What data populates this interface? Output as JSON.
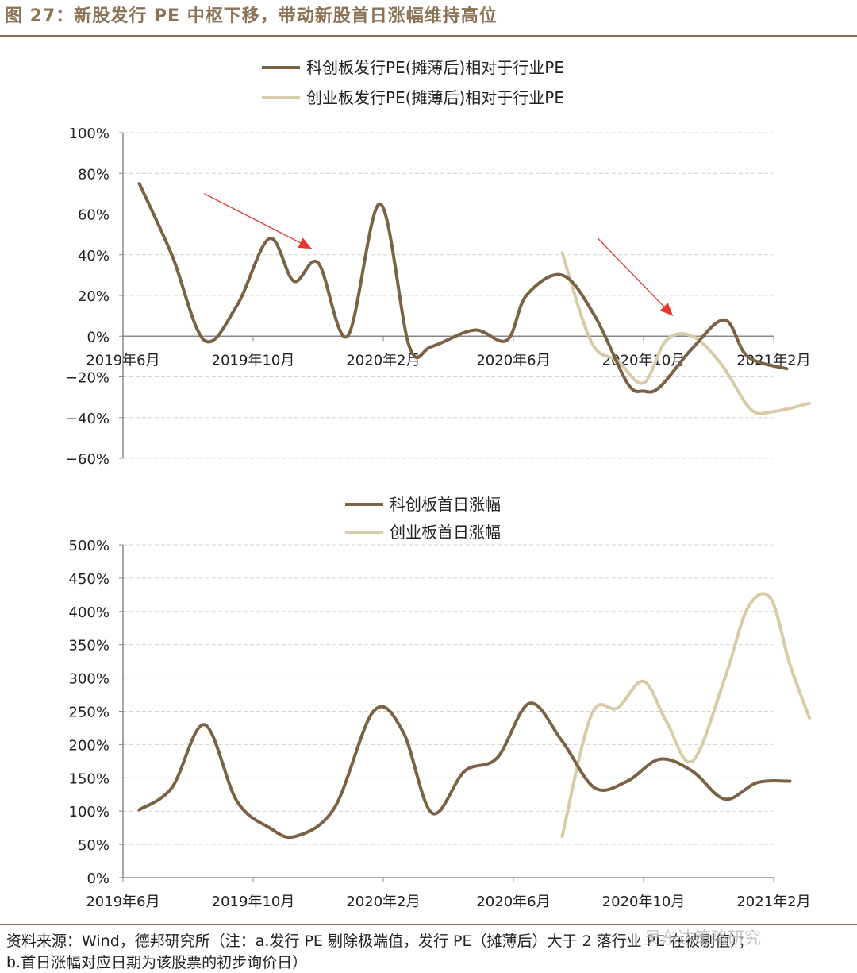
{
  "title": "图 27：新股发行 PE 中枢下移，带动新股首日涨幅维持高位",
  "colors": {
    "brand": "#8c7355",
    "kechuang": "#7c6245",
    "chuangye": "#d7cba8",
    "arrow": "#e8352d"
  },
  "footnote": {
    "line1": "资料来源：Wind，德邦研究所（注：a.发行 PE 剔除极端值，发行 PE（摊薄后）大于 2 落行业 PE 在被剔值）；",
    "line2": "b.首日涨幅对应日期为该股票的初步询价日）"
  },
  "watermark": "吴东达策略研究",
  "chart_data": [
    {
      "type": "line",
      "ylim": [
        -60,
        100
      ],
      "yticks": [
        -60,
        -40,
        -20,
        0,
        20,
        40,
        60,
        80,
        100
      ],
      "yticklabels": [
        "−60%",
        "−40%",
        "−20%",
        "0%",
        "20%",
        "40%",
        "60%",
        "80%",
        "100%"
      ],
      "xlim": [
        0,
        20
      ],
      "xticks": [
        0,
        4,
        8,
        12,
        16,
        20
      ],
      "xticklabels": [
        "2019年6月",
        "2019年10月",
        "2020年2月",
        "2020年6月",
        "2020年10月",
        "2021年2月"
      ],
      "legend": [
        "科创板发行PE(摊薄后)相对于行业PE",
        "创业板发行PE(摊薄后)相对于行业PE"
      ],
      "series": [
        {
          "name": "科创板发行PE(摊薄后)相对于行业PE",
          "x": [
            0.5,
            1.5,
            2.5,
            3.5,
            4.5,
            5.25,
            6.0,
            6.9,
            7.9,
            8.8,
            9.5,
            10.8,
            11.8,
            12.4,
            13.5,
            14.5,
            15.5,
            16.0,
            16.5,
            17.5,
            18.5,
            19.2,
            20.4
          ],
          "y": [
            75,
            40,
            -2,
            15,
            48,
            27,
            36,
            0,
            65,
            -5,
            -5,
            3,
            -2,
            20,
            30,
            10,
            -23,
            -27,
            -25,
            -6,
            8,
            -10,
            -16
          ]
        },
        {
          "name": "创业板发行PE(摊薄后)相对于行业PE",
          "x": [
            13.5,
            14.4,
            15.2,
            16.0,
            16.7,
            17.5,
            18.4,
            19.3,
            20.0,
            21.1
          ],
          "y": [
            41,
            -3,
            -12,
            -23,
            -2,
            0,
            -14,
            -36,
            -37,
            -33
          ]
        }
      ],
      "annotations": [
        {
          "type": "arrow",
          "from": [
            2.5,
            70
          ],
          "to": [
            5.8,
            43
          ]
        },
        {
          "type": "arrow",
          "from": [
            14.6,
            48
          ],
          "to": [
            16.9,
            10
          ]
        }
      ]
    },
    {
      "type": "line",
      "ylim": [
        0,
        500
      ],
      "yticks": [
        0,
        50,
        100,
        150,
        200,
        250,
        300,
        350,
        400,
        450,
        500
      ],
      "yticklabels": [
        "0%",
        "50%",
        "100%",
        "150%",
        "200%",
        "250%",
        "300%",
        "350%",
        "400%",
        "450%",
        "500%"
      ],
      "xlim": [
        0,
        20
      ],
      "xticks": [
        0,
        4,
        8,
        12,
        16,
        20
      ],
      "xticklabels": [
        "2019年6月",
        "2019年10月",
        "2020年2月",
        "2020年6月",
        "2020年10月",
        "2021年2月"
      ],
      "legend": [
        "科创板首日涨幅",
        "创业板首日涨幅"
      ],
      "series": [
        {
          "name": "科创板首日涨幅",
          "x": [
            0.5,
            1.5,
            2.5,
            3.5,
            4.5,
            5.3,
            6.5,
            7.7,
            8.6,
            9.5,
            10.5,
            11.5,
            12.5,
            13.5,
            14.5,
            15.5,
            16.5,
            17.5,
            18.5,
            19.5,
            20.5
          ],
          "y": [
            102,
            135,
            230,
            115,
            75,
            62,
            105,
            250,
            220,
            97,
            160,
            180,
            262,
            205,
            135,
            145,
            178,
            160,
            118,
            143,
            145
          ]
        },
        {
          "name": "创业板首日涨幅",
          "x": [
            13.5,
            14.4,
            15.2,
            16.0,
            16.7,
            17.5,
            18.5,
            19.2,
            19.9,
            20.5,
            21.1
          ],
          "y": [
            62,
            245,
            255,
            295,
            235,
            175,
            300,
            405,
            420,
            320,
            240
          ]
        }
      ]
    }
  ]
}
